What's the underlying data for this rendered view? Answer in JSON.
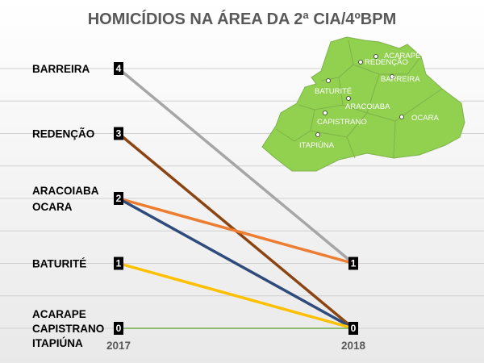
{
  "chart_data": {
    "type": "line",
    "title": "HOMICÍDIOS NA ÁREA DA 2ª CIA/4ºBPM",
    "x": [
      "2017",
      "2018"
    ],
    "ylim": [
      0,
      4
    ],
    "grid": true,
    "category_labels": [
      {
        "lines": [
          "BARREIRA"
        ],
        "value": 4
      },
      {
        "lines": [
          "REDENÇÃO"
        ],
        "value": 3
      },
      {
        "lines": [
          "ARACOIABA",
          "OCARA"
        ],
        "value": 2
      },
      {
        "lines": [
          "BATURITÉ"
        ],
        "value": 1
      },
      {
        "lines": [
          "ACARAPE",
          "CAPISTRANO",
          "ITAPIÚNA"
        ],
        "value": 0
      }
    ],
    "series": [
      {
        "values": [
          4,
          1
        ],
        "color": "#a6a6a6"
      },
      {
        "values": [
          3,
          0
        ],
        "color": "#8b4513"
      },
      {
        "values": [
          2,
          1
        ],
        "color": "#ed7d31"
      },
      {
        "values": [
          2,
          0
        ],
        "color": "#2f4b7c"
      },
      {
        "values": [
          1,
          0
        ],
        "color": "#ffc000"
      },
      {
        "values": [
          0,
          0
        ],
        "color": "#70ad47"
      }
    ],
    "value_labels": [
      {
        "x": 0,
        "y": 4,
        "text": "4"
      },
      {
        "x": 0,
        "y": 3,
        "text": "3"
      },
      {
        "x": 0,
        "y": 2,
        "text": "2"
      },
      {
        "x": 0,
        "y": 1,
        "text": "1"
      },
      {
        "x": 0,
        "y": 0,
        "text": "0"
      },
      {
        "x": 1,
        "y": 1,
        "text": "1"
      },
      {
        "x": 1,
        "y": 0,
        "text": "0"
      }
    ]
  },
  "map": {
    "fill_color": "#92d050",
    "cities": [
      "ACARAPE",
      "REDENÇÃO",
      "BARREIRA",
      "BATURITÉ",
      "ARACOIABA",
      "CAPISTRANO",
      "OCARA",
      "ITAPIÚNA"
    ]
  }
}
